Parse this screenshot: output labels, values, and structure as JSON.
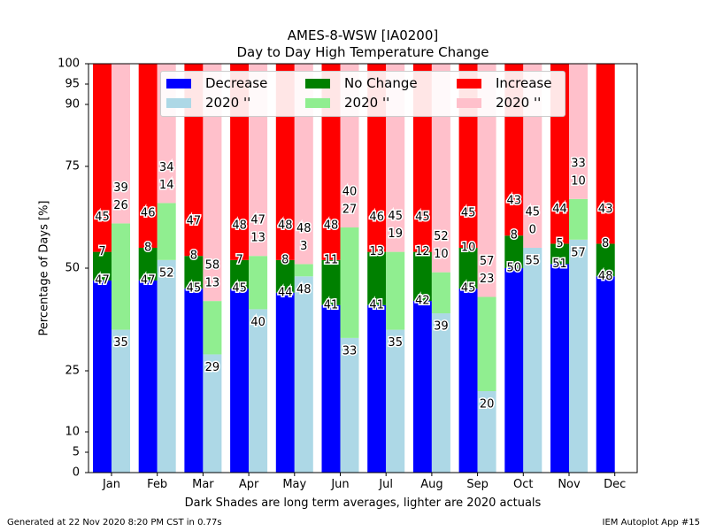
{
  "chart_data": {
    "type": "bar",
    "title": "AMES-8-WSW [IA0200]",
    "subtitle": "Day to Day High Temperature Change",
    "xlabel": "Dark Shades are long term averages, lighter are 2020 actuals",
    "ylabel": "Percentage of Days [%]",
    "categories": [
      "Jan",
      "Feb",
      "Mar",
      "Apr",
      "May",
      "Jun",
      "Jul",
      "Aug",
      "Sep",
      "Oct",
      "Nov",
      "Dec"
    ],
    "ylim": [
      0,
      100
    ],
    "ytick_values": [
      0,
      5,
      10,
      25,
      50,
      75,
      90,
      95,
      100
    ],
    "yscale": "probit-like (nonlinear; 50 at center)",
    "grid": false,
    "legend_position": "top",
    "stacked": true,
    "series": [
      {
        "name": "Decrease",
        "group": "long term average",
        "color": "#0000ff",
        "values": [
          47,
          47,
          45,
          45,
          44,
          41,
          41,
          42,
          45,
          50,
          51,
          48
        ]
      },
      {
        "name": "No Change",
        "group": "long term average",
        "color": "#008000",
        "values": [
          7,
          8,
          8,
          7,
          8,
          11,
          13,
          12,
          10,
          8,
          5,
          8
        ]
      },
      {
        "name": "Increase",
        "group": "long term average",
        "color": "#ff0000",
        "values": [
          45,
          46,
          47,
          48,
          48,
          48,
          46,
          45,
          45,
          43,
          44,
          43
        ]
      },
      {
        "name": "2020 ''",
        "group": "2020",
        "color": "#add8e6",
        "values": [
          35,
          52,
          29,
          40,
          48,
          33,
          35,
          39,
          20,
          55,
          57,
          null
        ]
      },
      {
        "name": "2020 ''",
        "group": "2020",
        "color": "#90ee90",
        "values": [
          26,
          14,
          13,
          13,
          3,
          27,
          19,
          10,
          23,
          0,
          10,
          null
        ]
      },
      {
        "name": "2020 ''",
        "group": "2020",
        "color": "#ffc0cb",
        "values": [
          39,
          34,
          58,
          47,
          48,
          40,
          45,
          52,
          57,
          45,
          33,
          null
        ]
      }
    ]
  },
  "legend": {
    "items": [
      {
        "label": "Decrease",
        "color": "#0000ff"
      },
      {
        "label": "No Change",
        "color": "#008000"
      },
      {
        "label": "Increase",
        "color": "#ff0000"
      },
      {
        "label": "2020 ''",
        "color": "#add8e6"
      },
      {
        "label": "2020 ''",
        "color": "#90ee90"
      },
      {
        "label": "2020 ''",
        "color": "#ffc0cb"
      }
    ]
  },
  "footer": {
    "left": "Generated at 22 Nov 2020 8:20 PM CST in 0.77s",
    "right": "IEM Autoplot App #15"
  }
}
